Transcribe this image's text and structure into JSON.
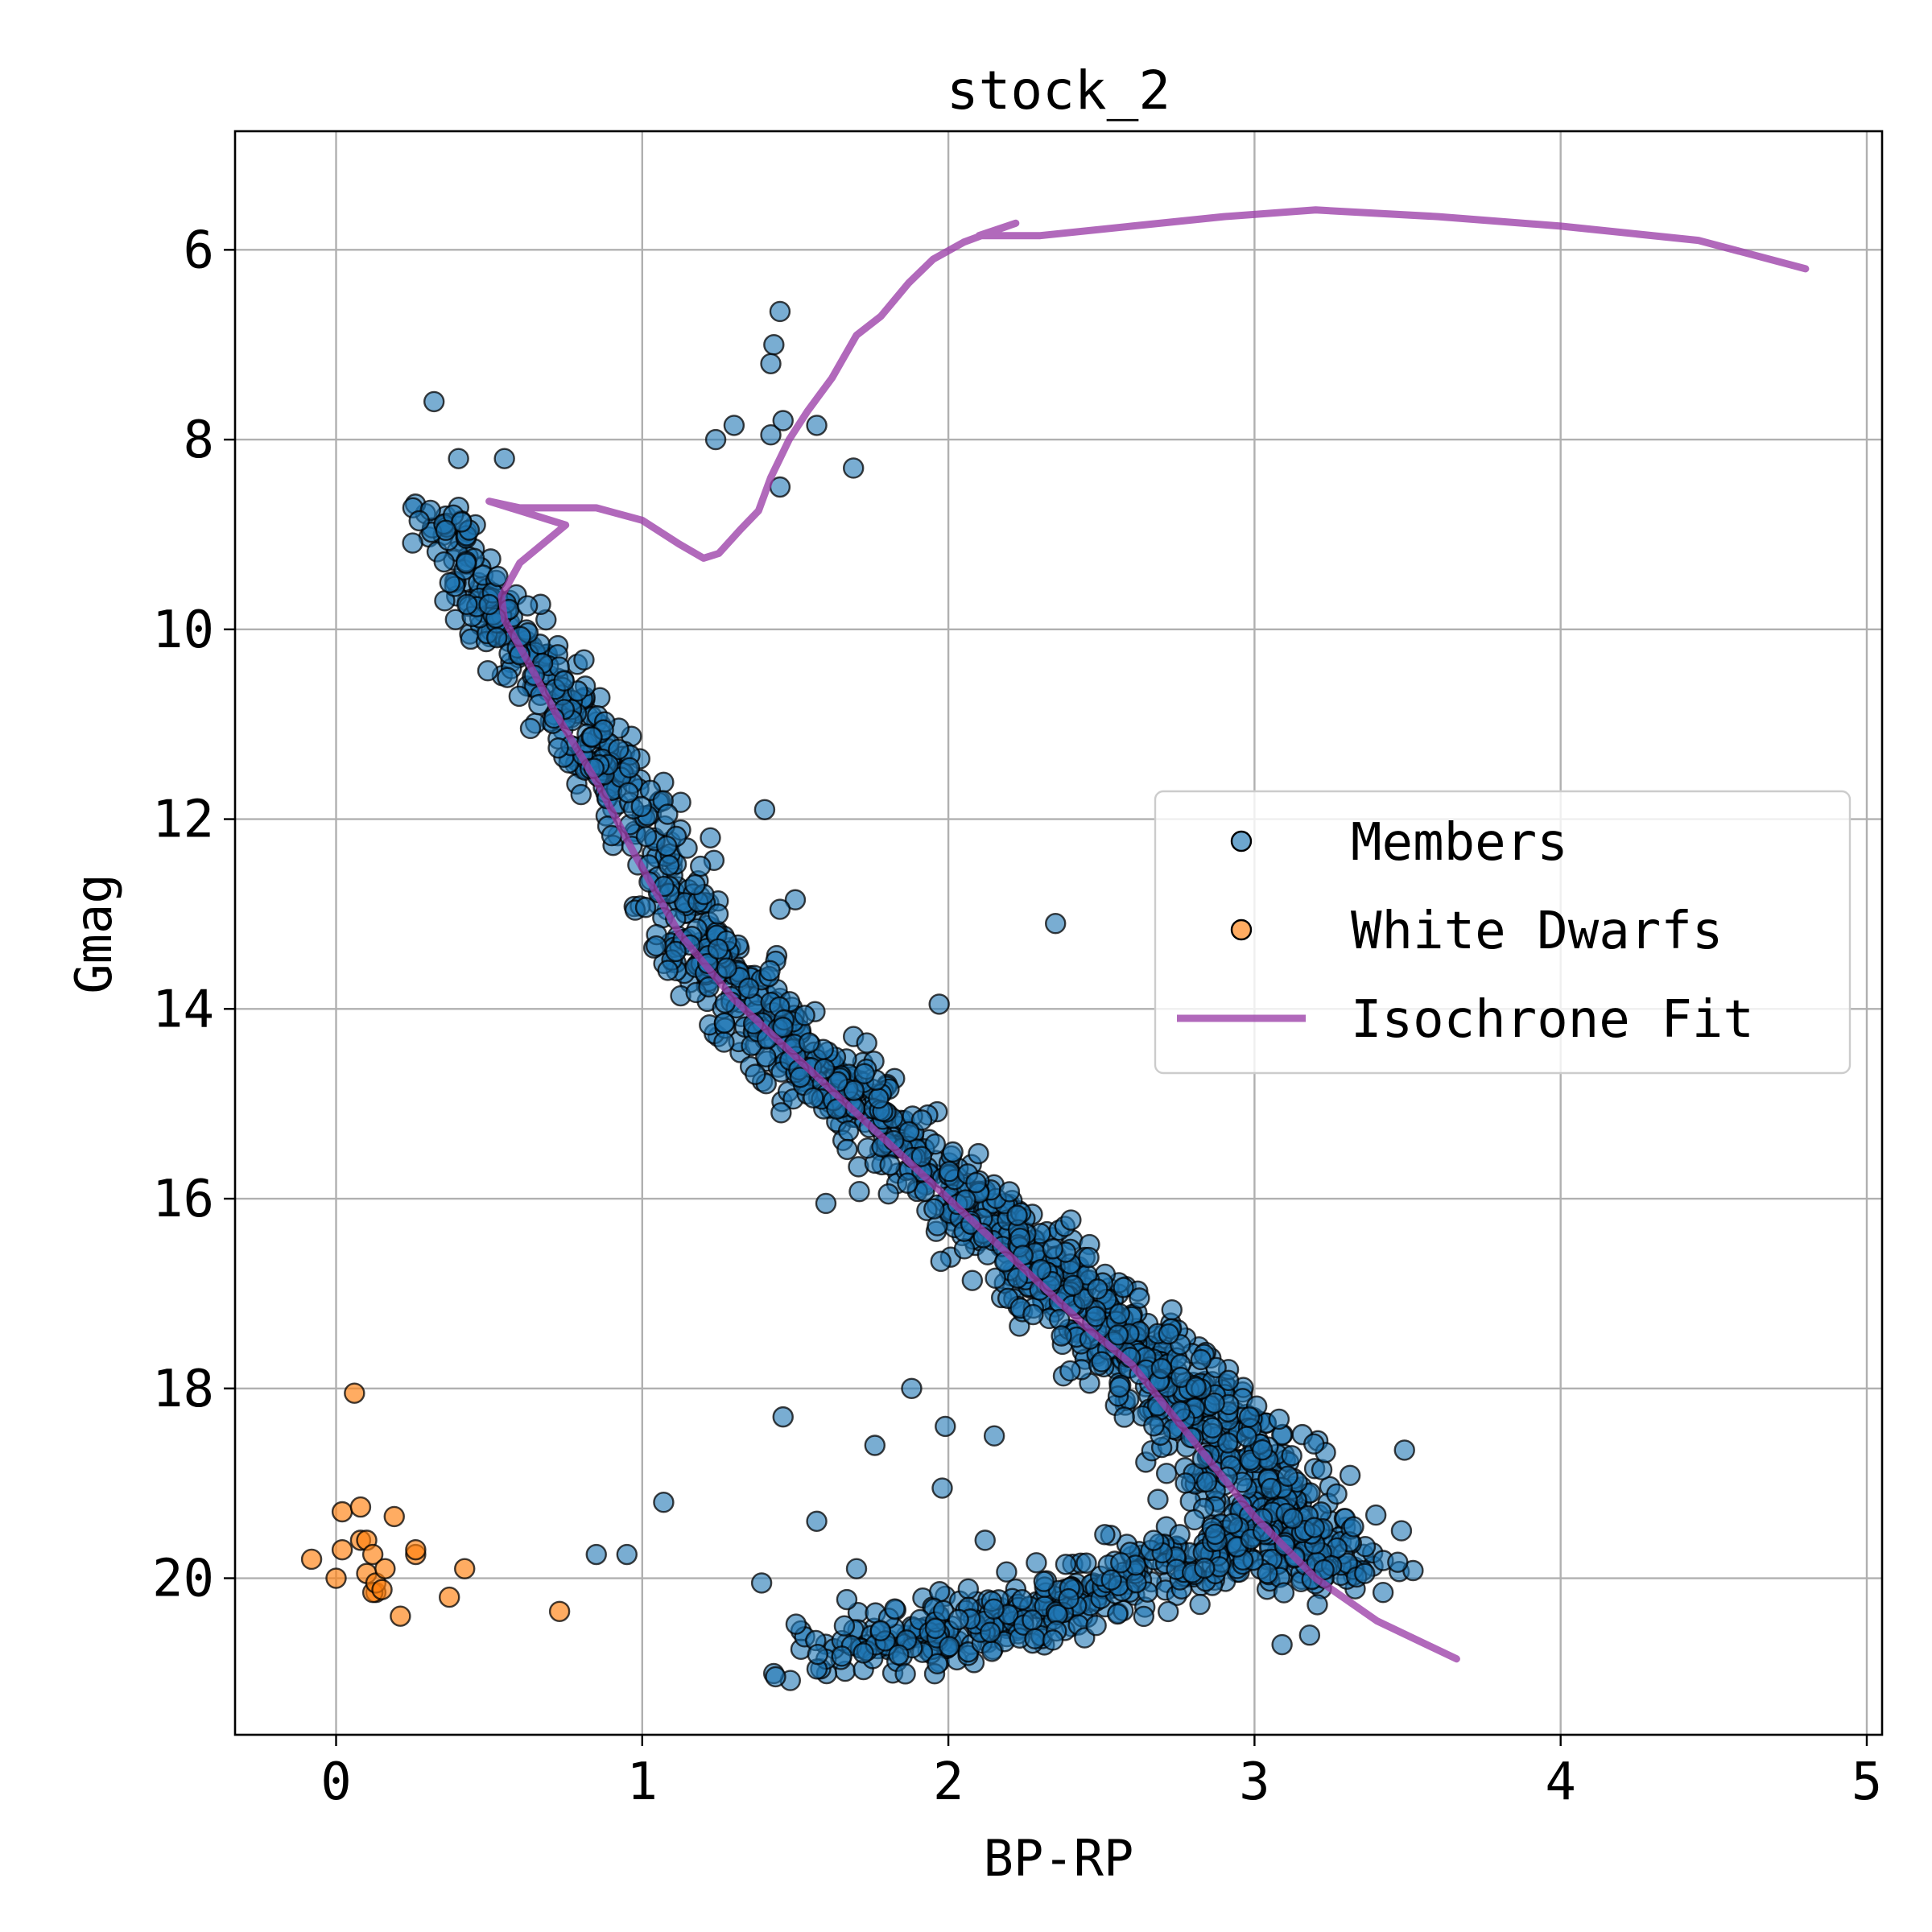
{
  "chart_data": {
    "type": "scatter",
    "title": "stock_2",
    "xlabel": "BP-RP",
    "ylabel": "Gmag",
    "xlim": [
      -0.33,
      5.05
    ],
    "ylim": [
      21.65,
      4.75
    ],
    "y_inverted": true,
    "xticks": [
      0,
      1,
      2,
      3,
      4,
      5
    ],
    "yticks": [
      6,
      8,
      10,
      12,
      14,
      16,
      18,
      20
    ],
    "grid": true,
    "legend_position": "center-right",
    "colors": {
      "members": "#1f77b4",
      "white_dwarfs": "#ff7f0e",
      "isochrone": "#9b3fa8",
      "edge": "#000000"
    },
    "series": [
      {
        "name": "Members",
        "kind": "scatter",
        "ridge": [
          [
            0.3,
            8.6
          ],
          [
            0.5,
            9.8
          ],
          [
            0.75,
            10.8
          ],
          [
            1.0,
            12.1
          ],
          [
            1.2,
            13.4
          ],
          [
            1.45,
            14.3
          ],
          [
            1.7,
            15.0
          ],
          [
            2.0,
            15.9
          ],
          [
            2.3,
            16.7
          ],
          [
            2.5,
            17.3
          ],
          [
            2.75,
            18.0
          ],
          [
            2.95,
            18.7
          ],
          [
            3.1,
            19.4
          ],
          [
            3.25,
            20.0
          ]
        ],
        "lower_sequence": [
          [
            1.55,
            20.8
          ],
          [
            1.9,
            20.6
          ],
          [
            2.2,
            20.5
          ],
          [
            2.5,
            20.1
          ],
          [
            2.8,
            19.8
          ],
          [
            3.0,
            19.6
          ]
        ],
        "points": [
          [
            0.32,
            7.6
          ],
          [
            0.55,
            8.2
          ],
          [
            0.4,
            8.2
          ],
          [
            1.45,
            6.65
          ],
          [
            1.43,
            7.0
          ],
          [
            1.42,
            7.2
          ],
          [
            1.24,
            8.0
          ],
          [
            1.3,
            7.85
          ],
          [
            1.42,
            7.95
          ],
          [
            1.46,
            7.8
          ],
          [
            1.57,
            7.85
          ],
          [
            1.69,
            8.3
          ],
          [
            1.45,
            8.5
          ],
          [
            1.4,
            11.9
          ],
          [
            1.5,
            12.85
          ],
          [
            1.45,
            12.95
          ],
          [
            2.35,
            13.1
          ],
          [
            1.97,
            13.95
          ],
          [
            1.6,
            16.05
          ],
          [
            1.88,
            18.0
          ],
          [
            1.99,
            18.4
          ],
          [
            2.15,
            18.5
          ],
          [
            1.46,
            18.3
          ],
          [
            1.76,
            18.6
          ],
          [
            1.07,
            19.2
          ],
          [
            1.57,
            19.4
          ],
          [
            0.85,
            19.75
          ],
          [
            0.95,
            19.75
          ],
          [
            1.7,
            19.9
          ],
          [
            1.39,
            20.05
          ],
          [
            1.98,
            19.05
          ],
          [
            2.12,
            19.6
          ],
          [
            3.36,
            19.95
          ],
          [
            3.42,
            20.15
          ],
          [
            3.49,
            18.65
          ],
          [
            3.48,
            19.5
          ],
          [
            3.18,
            20.6
          ],
          [
            3.09,
            20.7
          ]
        ]
      },
      {
        "name": "White Dwarfs",
        "kind": "scatter",
        "points": [
          [
            0.06,
            18.05
          ],
          [
            -0.08,
            19.8
          ],
          [
            0.0,
            20.0
          ],
          [
            0.02,
            19.3
          ],
          [
            0.02,
            19.7
          ],
          [
            0.08,
            19.25
          ],
          [
            0.08,
            19.6
          ],
          [
            0.1,
            19.95
          ],
          [
            0.1,
            19.6
          ],
          [
            0.12,
            19.75
          ],
          [
            0.13,
            20.15
          ],
          [
            0.12,
            20.15
          ],
          [
            0.13,
            20.05
          ],
          [
            0.15,
            20.12
          ],
          [
            0.16,
            19.9
          ],
          [
            0.19,
            19.35
          ],
          [
            0.21,
            20.4
          ],
          [
            0.26,
            19.75
          ],
          [
            0.26,
            19.7
          ],
          [
            0.37,
            20.2
          ],
          [
            0.42,
            19.9
          ],
          [
            0.73,
            20.35
          ]
        ]
      },
      {
        "name": "Isochrone Fit",
        "kind": "line",
        "points": [
          [
            3.66,
            20.85
          ],
          [
            3.4,
            20.45
          ],
          [
            3.2,
            20.0
          ],
          [
            3.0,
            19.35
          ],
          [
            2.8,
            18.55
          ],
          [
            2.6,
            17.75
          ],
          [
            2.45,
            17.35
          ],
          [
            2.3,
            16.9
          ],
          [
            2.1,
            16.3
          ],
          [
            1.9,
            15.7
          ],
          [
            1.7,
            15.1
          ],
          [
            1.5,
            14.5
          ],
          [
            1.3,
            13.9
          ],
          [
            1.12,
            13.2
          ],
          [
            0.98,
            12.4
          ],
          [
            0.85,
            11.6
          ],
          [
            0.72,
            10.9
          ],
          [
            0.62,
            10.3
          ],
          [
            0.55,
            9.9
          ],
          [
            0.54,
            9.65
          ],
          [
            0.6,
            9.3
          ],
          [
            0.75,
            8.9
          ],
          [
            0.6,
            8.75
          ],
          [
            0.5,
            8.65
          ],
          [
            0.6,
            8.72
          ],
          [
            0.85,
            8.72
          ],
          [
            1.0,
            8.85
          ],
          [
            1.12,
            9.1
          ],
          [
            1.2,
            9.25
          ],
          [
            1.25,
            9.2
          ],
          [
            1.32,
            8.95
          ],
          [
            1.38,
            8.75
          ],
          [
            1.42,
            8.4
          ],
          [
            1.48,
            8.0
          ],
          [
            1.54,
            7.7
          ],
          [
            1.62,
            7.35
          ],
          [
            1.7,
            6.9
          ],
          [
            1.78,
            6.7
          ],
          [
            1.87,
            6.35
          ],
          [
            1.95,
            6.1
          ],
          [
            2.05,
            5.92
          ],
          [
            2.15,
            5.8
          ],
          [
            2.22,
            5.72
          ],
          [
            2.1,
            5.85
          ],
          [
            2.3,
            5.85
          ],
          [
            2.6,
            5.75
          ],
          [
            2.9,
            5.65
          ],
          [
            3.2,
            5.58
          ],
          [
            3.6,
            5.65
          ],
          [
            4.0,
            5.75
          ],
          [
            4.45,
            5.9
          ],
          [
            4.8,
            6.2
          ]
        ]
      }
    ]
  }
}
